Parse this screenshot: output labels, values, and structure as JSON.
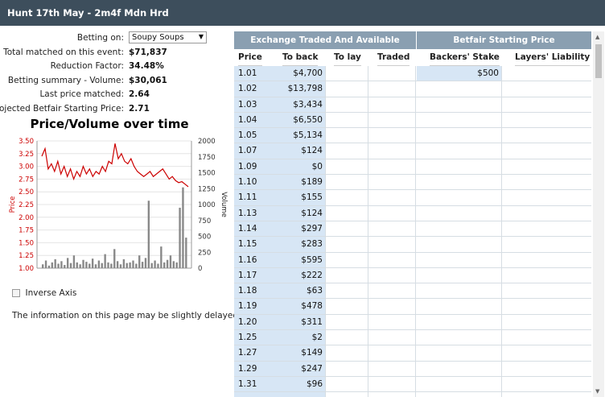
{
  "title": "Hunt 17th May - 2m4f Mdn Hrd",
  "summary": {
    "betting_on_label": "Betting on:",
    "betting_on_value": "Soupy Soups",
    "total_matched_label": "Total matched on this event:",
    "total_matched": "$71,837",
    "reduction_factor_label": "Reduction Factor:",
    "reduction_factor": "34.48%",
    "betting_summary_label": "Betting summary - Volume:",
    "betting_summary": "$30,061",
    "last_price_label": "Last price matched:",
    "last_price": "2.64",
    "projected_sp_label": "Projected Betfair Starting Price:",
    "projected_sp": "2.71"
  },
  "chart_data": {
    "type": "line",
    "title": "Price/Volume over time",
    "ylabel": "Price",
    "y2label": "Volume",
    "ylim": [
      1.0,
      3.5
    ],
    "y2lim": [
      0,
      2000
    ],
    "yticks": [
      "3.50",
      "3.25",
      "3.00",
      "2.75",
      "2.50",
      "2.25",
      "2.00",
      "1.75",
      "1.50",
      "1.25",
      "1.00"
    ],
    "y2ticks": [
      "2000",
      "1750",
      "1500",
      "1250",
      "1000",
      "750",
      "500",
      "250",
      "0"
    ],
    "colors": {
      "price": "#cc0000",
      "volume": "#888888"
    },
    "series": [
      {
        "name": "Price",
        "values": [
          3.2,
          3.35,
          2.95,
          3.05,
          2.9,
          3.1,
          2.85,
          3.0,
          2.8,
          2.95,
          2.75,
          2.9,
          2.8,
          3.0,
          2.85,
          2.95,
          2.8,
          2.9,
          2.85,
          3.0,
          2.9,
          3.1,
          3.05,
          3.45,
          3.15,
          3.25,
          3.1,
          3.05,
          3.15,
          3.0,
          2.9,
          2.85,
          2.8,
          2.85,
          2.9,
          2.8,
          2.85,
          2.9,
          2.95,
          2.85,
          2.75,
          2.8,
          2.72,
          2.68,
          2.7,
          2.65,
          2.6
        ]
      },
      {
        "name": "Volume",
        "values": [
          60,
          120,
          40,
          90,
          140,
          70,
          110,
          50,
          160,
          80,
          200,
          90,
          60,
          130,
          100,
          70,
          150,
          60,
          120,
          80,
          220,
          90,
          70,
          300,
          110,
          60,
          140,
          80,
          90,
          120,
          70,
          200,
          100,
          160,
          1060,
          80,
          120,
          70,
          340,
          90,
          130,
          200,
          110,
          90,
          950,
          1270,
          480
        ]
      }
    ]
  },
  "inverse_axis_label": "Inverse Axis",
  "delay_note": "The information on this page may be slightly delayed.",
  "ladder": {
    "group_exchange": "Exchange Traded And Available",
    "group_sp": "Betfair Starting Price",
    "col_price": "Price",
    "col_back": "To back",
    "col_lay": "To lay",
    "col_traded": "Traded",
    "col_backers": "Backers' Stake",
    "col_layers": "Layers' Liability",
    "rows": [
      {
        "price": "1.01",
        "back": "$4,700",
        "backers": "$500"
      },
      {
        "price": "1.02",
        "back": "$13,798",
        "backers": ""
      },
      {
        "price": "1.03",
        "back": "$3,434",
        "backers": ""
      },
      {
        "price": "1.04",
        "back": "$6,550",
        "backers": ""
      },
      {
        "price": "1.05",
        "back": "$5,134",
        "backers": ""
      },
      {
        "price": "1.07",
        "back": "$124",
        "backers": ""
      },
      {
        "price": "1.09",
        "back": "$0",
        "backers": ""
      },
      {
        "price": "1.10",
        "back": "$189",
        "backers": ""
      },
      {
        "price": "1.11",
        "back": "$155",
        "backers": ""
      },
      {
        "price": "1.13",
        "back": "$124",
        "backers": ""
      },
      {
        "price": "1.14",
        "back": "$297",
        "backers": ""
      },
      {
        "price": "1.15",
        "back": "$283",
        "backers": ""
      },
      {
        "price": "1.16",
        "back": "$595",
        "backers": ""
      },
      {
        "price": "1.17",
        "back": "$222",
        "backers": ""
      },
      {
        "price": "1.18",
        "back": "$63",
        "backers": ""
      },
      {
        "price": "1.19",
        "back": "$478",
        "backers": ""
      },
      {
        "price": "1.20",
        "back": "$311",
        "backers": ""
      },
      {
        "price": "1.25",
        "back": "$2",
        "backers": ""
      },
      {
        "price": "1.27",
        "back": "$149",
        "backers": ""
      },
      {
        "price": "1.29",
        "back": "$247",
        "backers": ""
      },
      {
        "price": "1.31",
        "back": "$96",
        "backers": ""
      },
      {
        "price": "",
        "back": "",
        "backers": ""
      }
    ]
  }
}
